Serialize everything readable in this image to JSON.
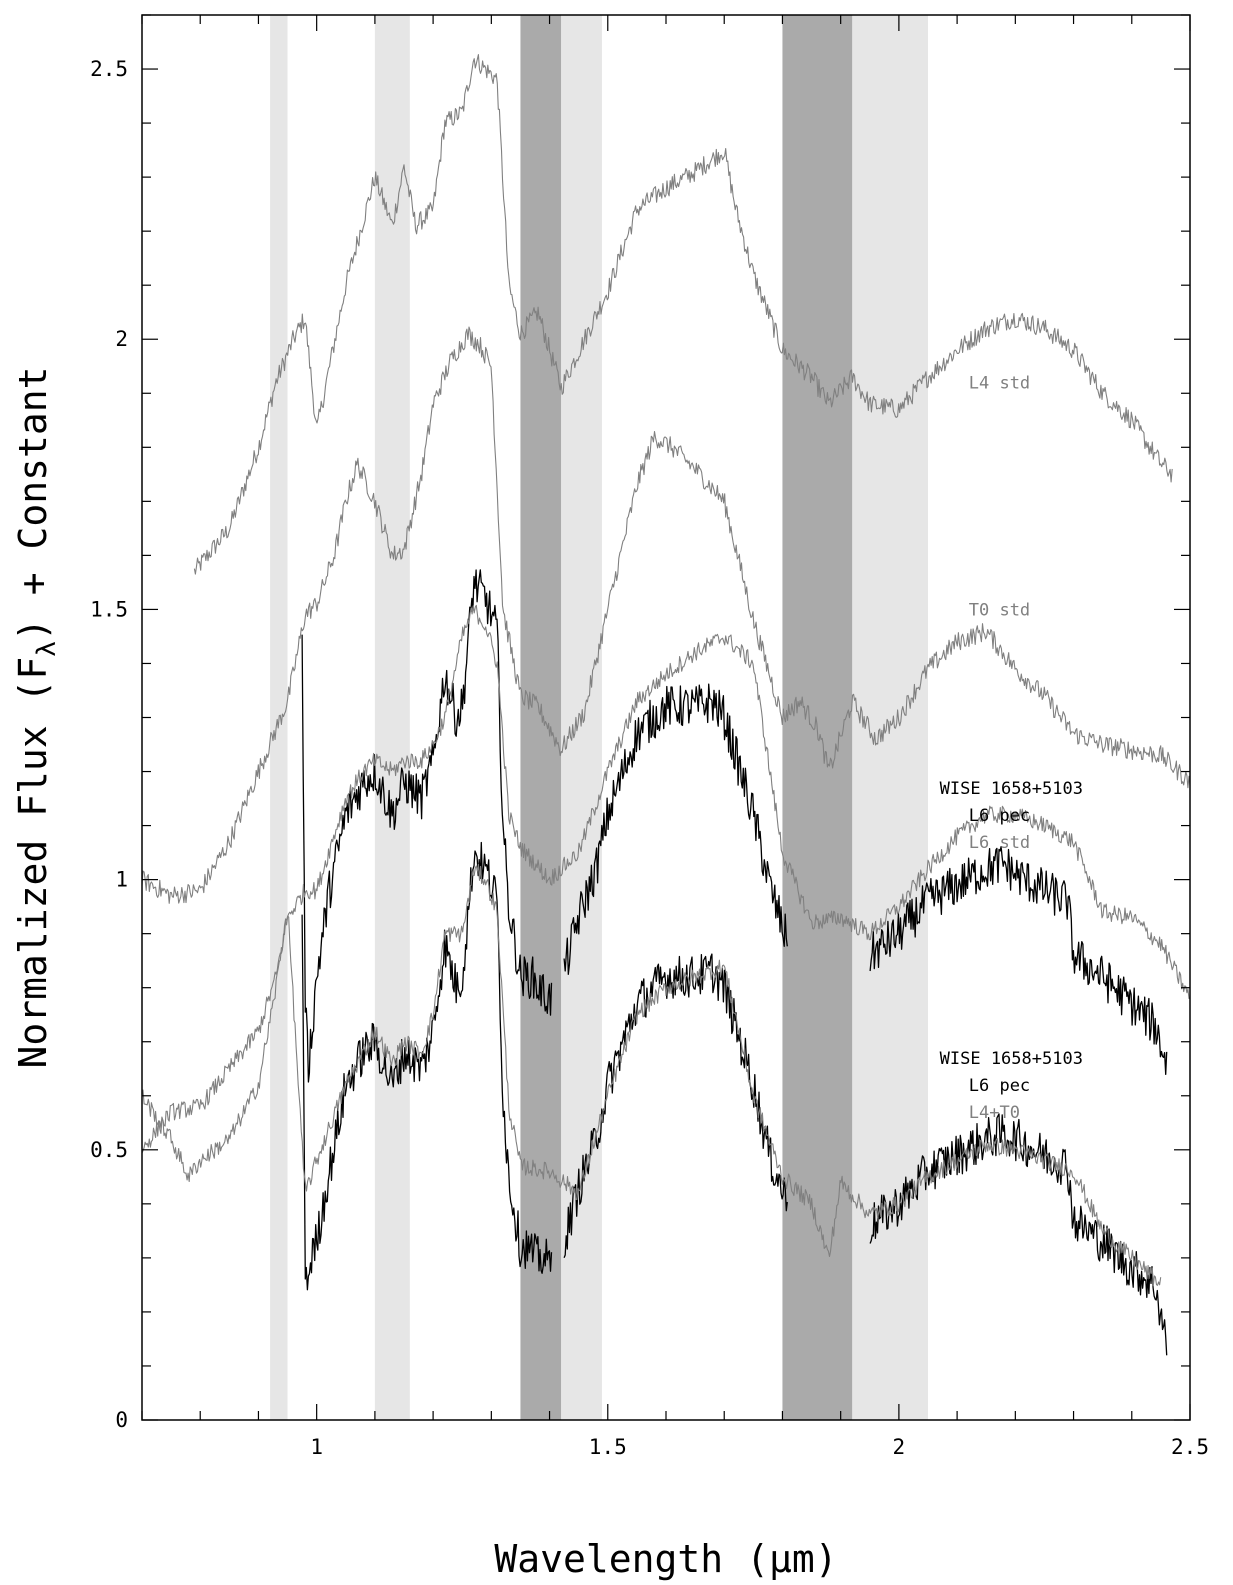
{
  "chart_data": {
    "type": "line",
    "xlabel": "Wavelength (μm)",
    "ylabel_parts": {
      "pre": "Normalized Flux (F",
      "sub": "λ",
      "post": ") + Constant"
    },
    "xlim": [
      0.7,
      2.5
    ],
    "ylim": [
      0,
      2.6
    ],
    "x_ticks": [
      "1",
      "1.5",
      "2",
      "2.5"
    ],
    "y_ticks": [
      "0",
      "0.5",
      "1",
      "1.5",
      "2",
      "2.5"
    ],
    "grid": false,
    "colors": {
      "object": "#000000",
      "standard": "#808080",
      "light_band": "#e6e6e6",
      "dark_band": "#aaaaaa"
    },
    "bands": [
      {
        "x0": 0.92,
        "x1": 0.95,
        "shade": "light"
      },
      {
        "x0": 1.1,
        "x1": 1.16,
        "shade": "light"
      },
      {
        "x0": 1.35,
        "x1": 1.42,
        "shade": "dark"
      },
      {
        "x0": 1.42,
        "x1": 1.49,
        "shade": "light"
      },
      {
        "x0": 1.8,
        "x1": 1.92,
        "shade": "dark"
      },
      {
        "x0": 1.92,
        "x1": 2.05,
        "shade": "light"
      }
    ],
    "series": [
      {
        "name": "L4 std",
        "color": "#808080",
        "noise": 0.018,
        "x": [
          0.79,
          0.85,
          0.9,
          0.93,
          0.96,
          0.98,
          1.0,
          1.05,
          1.08,
          1.1,
          1.13,
          1.15,
          1.17,
          1.2,
          1.22,
          1.25,
          1.27,
          1.29,
          1.31,
          1.33,
          1.35,
          1.38,
          1.42,
          1.46,
          1.5,
          1.55,
          1.6,
          1.65,
          1.7,
          1.72,
          1.75,
          1.8,
          1.85,
          1.88,
          1.92,
          1.95,
          2.0,
          2.05,
          2.1,
          2.15,
          2.2,
          2.25,
          2.3,
          2.35,
          2.4,
          2.45,
          2.47
        ],
        "y": [
          1.57,
          1.65,
          1.8,
          1.92,
          2.0,
          2.04,
          1.83,
          2.1,
          2.22,
          2.3,
          2.21,
          2.32,
          2.21,
          2.24,
          2.4,
          2.42,
          2.52,
          2.5,
          2.48,
          2.1,
          2.01,
          2.05,
          1.91,
          2.0,
          2.09,
          2.24,
          2.28,
          2.31,
          2.35,
          2.24,
          2.12,
          1.98,
          1.93,
          1.88,
          1.93,
          1.88,
          1.87,
          1.93,
          1.98,
          2.02,
          2.04,
          2.02,
          1.98,
          1.9,
          1.85,
          1.77,
          1.75
        ]
      },
      {
        "name": "T0 std",
        "color": "#808080",
        "noise": 0.018,
        "x": [
          0.7,
          0.75,
          0.8,
          0.85,
          0.9,
          0.95,
          0.98,
          1.0,
          1.03,
          1.05,
          1.07,
          1.1,
          1.13,
          1.15,
          1.18,
          1.2,
          1.23,
          1.26,
          1.28,
          1.3,
          1.32,
          1.35,
          1.38,
          1.42,
          1.46,
          1.5,
          1.55,
          1.58,
          1.61,
          1.65,
          1.7,
          1.75,
          1.8,
          1.83,
          1.86,
          1.88,
          1.92,
          1.96,
          2.0,
          2.05,
          2.1,
          2.15,
          2.2,
          2.25,
          2.3,
          2.35,
          2.4,
          2.45,
          2.5
        ],
        "y": [
          1.0,
          0.97,
          0.98,
          1.07,
          1.2,
          1.33,
          1.49,
          1.51,
          1.6,
          1.7,
          1.77,
          1.7,
          1.6,
          1.61,
          1.75,
          1.88,
          1.96,
          2.01,
          1.99,
          1.95,
          1.5,
          1.34,
          1.32,
          1.24,
          1.31,
          1.5,
          1.73,
          1.82,
          1.8,
          1.76,
          1.7,
          1.48,
          1.3,
          1.33,
          1.28,
          1.2,
          1.33,
          1.26,
          1.3,
          1.39,
          1.44,
          1.46,
          1.39,
          1.34,
          1.27,
          1.25,
          1.24,
          1.23,
          1.18
        ]
      },
      {
        "name": "WISE 1658+5103 (upper)",
        "color": "#000000",
        "noise": 0.04,
        "x": [
          0.975,
          0.98,
          0.985,
          0.99,
          1.0,
          1.02,
          1.05,
          1.08,
          1.1,
          1.13,
          1.15,
          1.18,
          1.2,
          1.22,
          1.24,
          1.25,
          1.27,
          1.29,
          1.31,
          1.32,
          1.33,
          1.35,
          1.36,
          1.37,
          1.38,
          1.39,
          1.4,
          1.405,
          1.43,
          1.45,
          1.48,
          1.5,
          1.55,
          1.6,
          1.65,
          1.68,
          1.7,
          1.75,
          1.78,
          1.81,
          1.95,
          2.0,
          2.05,
          2.1,
          2.15,
          2.18,
          2.2,
          2.25,
          2.29,
          2.3,
          2.35,
          2.4,
          2.44,
          2.46
        ],
        "y": [
          1.45,
          0.8,
          0.65,
          0.7,
          0.82,
          0.97,
          1.12,
          1.18,
          1.2,
          1.12,
          1.18,
          1.15,
          1.22,
          1.38,
          1.3,
          1.32,
          1.55,
          1.52,
          1.46,
          1.1,
          0.95,
          0.82,
          0.82,
          0.82,
          0.8,
          0.79,
          0.78,
          0.78,
          0.85,
          0.93,
          1.02,
          1.12,
          1.27,
          1.32,
          1.32,
          1.33,
          1.3,
          1.12,
          0.98,
          0.88,
          0.86,
          0.9,
          0.96,
          0.99,
          1.02,
          1.03,
          1.01,
          0.98,
          0.96,
          0.86,
          0.82,
          0.77,
          0.73,
          0.66
        ]
      },
      {
        "name": "L6 std",
        "color": "#808080",
        "noise": 0.016,
        "x": [
          0.7,
          0.75,
          0.8,
          0.85,
          0.9,
          0.93,
          0.95,
          0.98,
          1.0,
          1.05,
          1.08,
          1.1,
          1.13,
          1.15,
          1.18,
          1.2,
          1.22,
          1.25,
          1.27,
          1.29,
          1.31,
          1.33,
          1.35,
          1.4,
          1.45,
          1.5,
          1.55,
          1.6,
          1.65,
          1.7,
          1.75,
          1.8,
          1.85,
          1.9,
          1.95,
          2.0,
          2.05,
          2.1,
          2.15,
          2.2,
          2.25,
          2.3,
          2.35,
          2.4,
          2.45,
          2.5
        ],
        "y": [
          0.5,
          0.57,
          0.58,
          0.65,
          0.72,
          0.82,
          0.93,
          0.98,
          0.98,
          1.15,
          1.2,
          1.22,
          1.2,
          1.22,
          1.22,
          1.25,
          1.3,
          1.45,
          1.5,
          1.47,
          1.4,
          1.12,
          1.06,
          1.0,
          1.05,
          1.2,
          1.33,
          1.38,
          1.42,
          1.45,
          1.4,
          1.05,
          0.92,
          0.93,
          0.9,
          0.95,
          1.02,
          1.08,
          1.12,
          1.12,
          1.1,
          1.07,
          0.94,
          0.93,
          0.88,
          0.78
        ]
      },
      {
        "name": "WISE 1658+5103 (lower)",
        "color": "#000000",
        "noise": 0.04,
        "x": [
          0.975,
          0.98,
          0.985,
          0.99,
          1.0,
          1.02,
          1.05,
          1.08,
          1.1,
          1.13,
          1.15,
          1.18,
          1.2,
          1.22,
          1.24,
          1.25,
          1.27,
          1.29,
          1.31,
          1.32,
          1.33,
          1.35,
          1.36,
          1.37,
          1.38,
          1.39,
          1.4,
          1.405,
          1.43,
          1.45,
          1.48,
          1.5,
          1.55,
          1.6,
          1.65,
          1.68,
          1.7,
          1.75,
          1.78,
          1.81,
          1.95,
          2.0,
          2.05,
          2.1,
          2.15,
          2.18,
          2.2,
          2.25,
          2.29,
          2.3,
          2.35,
          2.4,
          2.44,
          2.46
        ],
        "y": [
          0.95,
          0.3,
          0.25,
          0.3,
          0.33,
          0.45,
          0.62,
          0.68,
          0.7,
          0.62,
          0.68,
          0.65,
          0.72,
          0.88,
          0.8,
          0.82,
          1.05,
          1.02,
          0.96,
          0.6,
          0.45,
          0.32,
          0.32,
          0.31,
          0.3,
          0.3,
          0.29,
          0.29,
          0.35,
          0.43,
          0.52,
          0.62,
          0.77,
          0.82,
          0.82,
          0.83,
          0.8,
          0.62,
          0.48,
          0.4,
          0.36,
          0.4,
          0.46,
          0.49,
          0.52,
          0.53,
          0.52,
          0.49,
          0.47,
          0.37,
          0.33,
          0.28,
          0.25,
          0.14
        ]
      },
      {
        "name": "L4+T0",
        "color": "#808080",
        "noise": 0.016,
        "x": [
          0.7,
          0.75,
          0.78,
          0.8,
          0.85,
          0.9,
          0.93,
          0.95,
          0.98,
          1.0,
          1.05,
          1.08,
          1.1,
          1.13,
          1.15,
          1.18,
          1.2,
          1.22,
          1.25,
          1.27,
          1.29,
          1.31,
          1.33,
          1.35,
          1.4,
          1.45,
          1.5,
          1.55,
          1.6,
          1.65,
          1.7,
          1.75,
          1.8,
          1.85,
          1.88,
          1.9,
          1.95,
          2.0,
          2.05,
          2.1,
          2.15,
          2.2,
          2.25,
          2.3,
          2.35,
          2.4,
          2.45
        ],
        "y": [
          0.6,
          0.52,
          0.45,
          0.48,
          0.52,
          0.62,
          0.8,
          0.95,
          0.42,
          0.48,
          0.62,
          0.68,
          0.72,
          0.66,
          0.7,
          0.68,
          0.75,
          0.9,
          0.9,
          1.02,
          1.0,
          0.94,
          0.58,
          0.47,
          0.46,
          0.42,
          0.6,
          0.75,
          0.8,
          0.82,
          0.84,
          0.6,
          0.45,
          0.4,
          0.3,
          0.44,
          0.38,
          0.4,
          0.45,
          0.48,
          0.51,
          0.5,
          0.48,
          0.46,
          0.35,
          0.3,
          0.25
        ]
      }
    ],
    "annotations": [
      {
        "text": "L4 std",
        "x": 2.12,
        "y": 1.92,
        "color": "#808080",
        "anchor": "start"
      },
      {
        "text": "T0 std",
        "x": 2.12,
        "y": 1.5,
        "color": "#808080",
        "anchor": "start"
      },
      {
        "text": "WISE 1658+5103",
        "x": 2.07,
        "y": 1.17,
        "color": "#000000",
        "anchor": "start"
      },
      {
        "text": "L6 pec",
        "x": 2.12,
        "y": 1.12,
        "color": "#000000",
        "anchor": "start"
      },
      {
        "text": "L6 std",
        "x": 2.12,
        "y": 1.07,
        "color": "#808080",
        "anchor": "start"
      },
      {
        "text": "WISE 1658+5103",
        "x": 2.07,
        "y": 0.67,
        "color": "#000000",
        "anchor": "start"
      },
      {
        "text": "L6 pec",
        "x": 2.12,
        "y": 0.62,
        "color": "#000000",
        "anchor": "start"
      },
      {
        "text": "L4+T0",
        "x": 2.12,
        "y": 0.57,
        "color": "#808080",
        "anchor": "start"
      }
    ]
  }
}
